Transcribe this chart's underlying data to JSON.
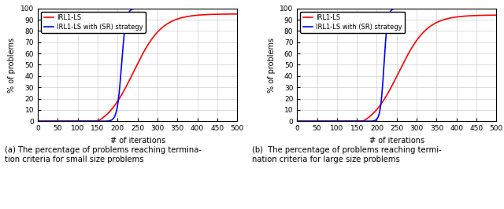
{
  "xlim": [
    0,
    500
  ],
  "ylim": [
    0,
    100
  ],
  "xticks": [
    0,
    50,
    100,
    150,
    200,
    250,
    300,
    350,
    400,
    450,
    500
  ],
  "yticks": [
    0,
    10,
    20,
    30,
    40,
    50,
    60,
    70,
    80,
    90,
    100
  ],
  "xlabel": "# of iterations",
  "ylabel": "% of problems",
  "legend_labels": [
    "IRL1-LS",
    "IRL1-LS with (SR) strategy"
  ],
  "line_colors": [
    "red",
    "blue"
  ],
  "caption_a": "(a) The percentage of problems reaching termina-\ntion criteria for small size problems",
  "caption_b": "(b)  The percentage of problems reaching termi-\nnation criteria for large size problems",
  "panel_a": {
    "red_inflect_x": 240,
    "red_k": 0.028,
    "red_end_y": 95,
    "red_clip_start": 150,
    "blue_inflect_x": 210,
    "blue_k": 0.18,
    "blue_end_y": 100,
    "blue_clip_start": 165
  },
  "panel_b": {
    "red_inflect_x": 255,
    "red_k": 0.028,
    "red_end_y": 94,
    "red_clip_start": 165,
    "blue_inflect_x": 218,
    "blue_k": 0.22,
    "blue_end_y": 100,
    "blue_clip_start": 178
  }
}
